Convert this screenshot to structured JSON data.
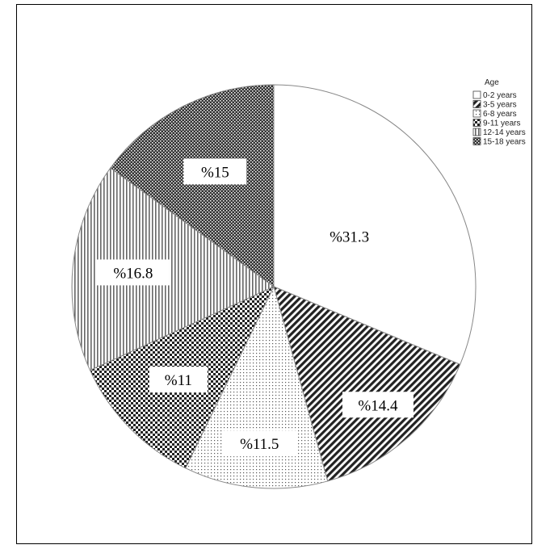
{
  "chart_data": {
    "type": "pie",
    "legend_title": "Age",
    "legend_position": "top-right",
    "categories": [
      "0-2 years",
      "3-5 years",
      "6-8 years",
      "9-11 years",
      "12-14 years",
      "15-18 years"
    ],
    "values": [
      31.3,
      14.4,
      11.5,
      11,
      16.8,
      15
    ],
    "data_labels": [
      "%31.3",
      "%14.4",
      "%11.5",
      "%11",
      "%16.8",
      "%15"
    ],
    "patterns": [
      "blank",
      "diagonal-stripes",
      "dots",
      "checker",
      "vertical-stripes",
      "dense-checker"
    ]
  }
}
